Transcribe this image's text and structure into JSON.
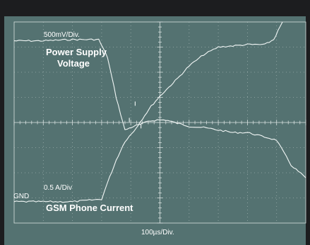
{
  "scope": {
    "colors": {
      "bezel": "#1c1d1f",
      "screen": "#547271",
      "graticule": "#d7e0df",
      "trace": "#f2f7f6",
      "text": "#ffffff"
    },
    "labels": {
      "voltage_scale": "500mV/Div.",
      "voltage_name_line1": "Power Supply",
      "voltage_name_line2": "Voltage",
      "current_scale": "0.5 A/Div",
      "current_name": "GSM Phone Current",
      "ground": "GND",
      "time_scale": "100µs/Div."
    }
  },
  "chart_data": {
    "type": "line",
    "title": "",
    "xlabel": "100µs/Div.",
    "ylabel": "",
    "x_unit": "division",
    "y_unit": "division",
    "grid": true,
    "xlim": [
      0,
      10
    ],
    "ylim": [
      0,
      8
    ],
    "series": [
      {
        "name": "Power Supply Voltage",
        "x": [
          0,
          1.0,
          2.0,
          2.9,
          3.2,
          3.5,
          3.8,
          4.1,
          4.4,
          4.6,
          4.9,
          5.2,
          5.5,
          6.0,
          6.5,
          7.0,
          7.5,
          8.0,
          8.5,
          9.0,
          9.5,
          10.0
        ],
        "values": [
          7.25,
          7.25,
          7.3,
          7.3,
          6.6,
          5.0,
          3.7,
          3.85,
          3.95,
          4.05,
          4.1,
          4.1,
          4.0,
          3.85,
          3.8,
          3.7,
          3.6,
          3.6,
          3.45,
          3.3,
          2.3,
          1.8
        ]
      },
      {
        "name": "GSM Phone Current",
        "x": [
          0,
          1.0,
          2.0,
          3.0,
          3.2,
          3.5,
          3.8,
          4.1,
          4.4,
          4.7,
          5.0,
          5.3,
          5.6,
          6.0,
          6.5,
          7.0,
          7.5,
          8.0,
          8.6,
          8.9,
          9.2
        ],
        "values": [
          0.85,
          0.85,
          0.85,
          0.95,
          1.6,
          2.5,
          3.25,
          3.65,
          4.15,
          4.65,
          5.05,
          5.4,
          5.75,
          6.25,
          6.7,
          7.0,
          7.05,
          7.1,
          7.1,
          7.3,
          8.0
        ]
      }
    ]
  }
}
